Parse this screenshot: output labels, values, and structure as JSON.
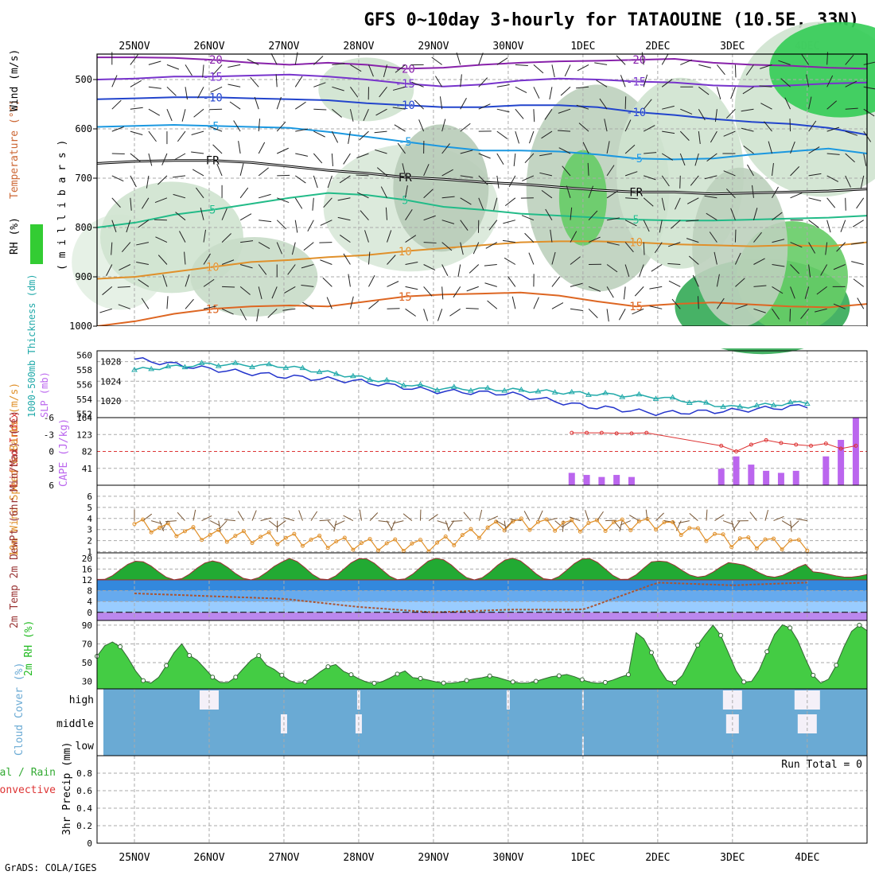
{
  "title": "GFS 0~10day 3-hourly for TATAOUINE (10.5E, 33N)",
  "footer": "GrADS: COLA/IGES",
  "dates": [
    "25NOV",
    "26NOV",
    "27NOV",
    "28NOV",
    "29NOV",
    "30NOV",
    "1DEC",
    "2DEC",
    "3DEC",
    "4DEC"
  ],
  "colors": {
    "frame": "#000000",
    "grid": "#aaaaaa",
    "rh_green": "#33cc33",
    "slp": "#2233cc",
    "thickness": "#22aaaa",
    "cape": "#bb66ee",
    "lifted": "#dd3333",
    "wind10": "#e0902a",
    "dew": "#aa5533",
    "cloud": "#6aaad4",
    "rh2m": "#22bb22"
  },
  "chart_data": [
    {
      "type": "contour",
      "panel": "upper-air",
      "ylabels": {
        "wind": "Wind (m/s)",
        "temperature": "Temperature (°C)",
        "rh": "RH (%)",
        "pressure": "( m i l l i b a r s )"
      },
      "yticks": [
        500,
        600,
        700,
        800,
        900,
        1000
      ],
      "temperature_isotherms": [
        {
          "label": "-20",
          "level_mb": [
            455,
            455,
            456,
            460,
            466,
            470,
            466,
            470,
            478,
            476,
            470,
            466,
            463,
            462,
            460,
            458,
            466,
            470,
            472,
            476,
            478
          ],
          "color": "#8822aa"
        },
        {
          "label": "-15",
          "level_mb": [
            500,
            498,
            494,
            494,
            492,
            490,
            494,
            500,
            508,
            514,
            510,
            502,
            498,
            500,
            504,
            506,
            512,
            514,
            512,
            508,
            506
          ],
          "color": "#7733cc"
        },
        {
          "label": "-10",
          "level_mb": [
            540,
            538,
            536,
            536,
            538,
            540,
            542,
            548,
            552,
            556,
            556,
            552,
            552,
            556,
            566,
            572,
            580,
            586,
            590,
            598,
            612
          ],
          "color": "#2244cc"
        },
        {
          "label": "-5",
          "level_mb": [
            596,
            594,
            592,
            594,
            596,
            598,
            606,
            616,
            626,
            636,
            644,
            644,
            646,
            652,
            660,
            662,
            660,
            652,
            646,
            640,
            650
          ],
          "color": "#1b98e0"
        },
        {
          "label": "FR",
          "level_mb": [
            670,
            666,
            664,
            664,
            668,
            676,
            684,
            690,
            698,
            702,
            708,
            712,
            718,
            724,
            728,
            728,
            732,
            730,
            728,
            726,
            722
          ],
          "color": "#000000"
        },
        {
          "label": "5",
          "level_mb": [
            800,
            790,
            774,
            764,
            752,
            740,
            730,
            734,
            744,
            758,
            764,
            772,
            776,
            780,
            784,
            786,
            786,
            784,
            782,
            780,
            776
          ],
          "color": "#22bb88"
        },
        {
          "label": "10",
          "level_mb": [
            904,
            900,
            890,
            880,
            870,
            866,
            860,
            856,
            848,
            842,
            836,
            830,
            828,
            828,
            830,
            834,
            836,
            838,
            836,
            838,
            830
          ],
          "color": "#e0902a"
        },
        {
          "label": "15",
          "level_mb": [
            1010,
            990,
            975,
            965,
            960,
            958,
            960,
            950,
            940,
            936,
            934,
            932,
            938,
            950,
            960,
            955,
            952,
            956,
            960,
            962,
            955
          ],
          "color": "#dd6622"
        }
      ]
    },
    {
      "type": "line",
      "panel": "slp-thickness",
      "ylabel_left": "1000-500mb Thickness (dm)",
      "ylabel_right": "SLP (mb)",
      "yticks_left": [
        552,
        554,
        556,
        558,
        560
      ],
      "yticks_right": [
        1020,
        1024,
        1028
      ],
      "ylim_left": [
        551.5,
        560.6
      ],
      "ylim_right": [
        1016.6,
        1030.2
      ],
      "x": [
        "25NOV",
        "26NOV",
        "27NOV",
        "28NOV",
        "29NOV",
        "30NOV",
        "1DEC",
        "2DEC",
        "3DEC",
        "4DEC"
      ],
      "series": [
        {
          "name": "SLP (mb)",
          "axis": "right",
          "values": [
            1028.5,
            1026.5,
            1025.0,
            1024.0,
            1022.0,
            1021.5,
            1019.0,
            1017.5,
            1018.0,
            1019.0
          ]
        },
        {
          "name": "1000-500mb Thickness (dm)",
          "axis": "left",
          "values": [
            558.0,
            558.8,
            558.5,
            557.0,
            555.5,
            555.3,
            554.8,
            554.3,
            552.9,
            553.6
          ]
        }
      ]
    },
    {
      "type": "bar",
      "panel": "cape-li",
      "ylabel_left": "Lifted Index",
      "ylabel_right": "CAPE (J/kg)",
      "yticks_left": [
        -6,
        -3,
        0,
        3,
        6
      ],
      "yticks_right": [
        41,
        82,
        123,
        164
      ],
      "x_days": [
        6.35,
        6.55,
        6.75,
        6.95,
        7.15,
        7.35,
        8.35,
        8.55,
        8.75,
        8.95,
        9.15,
        9.35,
        9.55,
        9.75,
        9.95,
        10.15
      ],
      "cape": [
        30,
        25,
        20,
        25,
        20,
        0,
        40,
        70,
        50,
        35,
        30,
        35,
        0,
        70,
        110,
        164
      ],
      "lifted": [
        3.3,
        3.3,
        3.3,
        3.2,
        3.2,
        3.3,
        1.0,
        0.0,
        1.2,
        2.0,
        1.5,
        1.2,
        1.0,
        1.4,
        0.5,
        1.0
      ]
    },
    {
      "type": "line",
      "panel": "wind10m",
      "ylabel": "10m Wind Speed & Barbs (m/s)",
      "yticks": [
        1,
        2,
        3,
        4,
        5,
        6
      ],
      "x": [
        "25NOV",
        "26NOV",
        "27NOV",
        "28NOV",
        "29NOV",
        "30NOV",
        "1DEC",
        "2DEC",
        "3DEC",
        "4DEC"
      ],
      "values": [
        3.5,
        2.5,
        2.2,
        1.7,
        1.6,
        3.6,
        3.4,
        3.6,
        2.0,
        1.7
      ]
    },
    {
      "type": "area",
      "panel": "temp2m",
      "ylabel": "2m Temp 2m DewPt (6hr Min/Max) (°C)",
      "yticks": [
        0,
        4,
        8,
        12,
        16,
        20
      ],
      "x": [
        "25NOV",
        "26NOV",
        "27NOV",
        "28NOV",
        "29NOV",
        "30NOV",
        "1DEC",
        "2DEC",
        "3DEC",
        "4DEC"
      ],
      "temp_max": [
        19,
        19,
        20,
        20,
        20,
        20,
        20,
        19,
        18,
        15
      ],
      "temp_min": [
        12,
        12,
        12,
        12,
        12,
        12,
        12,
        13,
        13,
        13
      ],
      "dewpoint": [
        7,
        6,
        5,
        2,
        0,
        1,
        1,
        11,
        10,
        11
      ]
    },
    {
      "type": "area",
      "panel": "rh2m",
      "ylabel": "2m RH (%)",
      "yticks": [
        30,
        50,
        70,
        90
      ],
      "x": [
        "25NOV",
        "26NOV",
        "27NOV",
        "28NOV",
        "29NOV",
        "30NOV",
        "1DEC",
        "2DEC",
        "3DEC",
        "4DEC"
      ],
      "values": [
        72,
        58,
        48,
        42,
        34,
        36,
        38,
        82,
        91,
        90
      ]
    },
    {
      "type": "heatmap",
      "panel": "cloud",
      "ylabel": "Cloud Cover (%)",
      "rows": [
        "high",
        "middle",
        "low"
      ],
      "high": [
        0,
        60,
        0,
        10,
        0,
        10,
        5,
        0,
        60,
        80
      ],
      "middle": [
        0,
        0,
        20,
        20,
        0,
        0,
        0,
        0,
        40,
        60
      ],
      "low": [
        0,
        0,
        0,
        0,
        0,
        0,
        5,
        0,
        0,
        0
      ]
    },
    {
      "type": "bar",
      "panel": "precip",
      "ylabel": "3hr Precip (mm)",
      "legend": "Total / Rain Convective",
      "yticks": [
        0,
        0.2,
        0.4,
        0.6,
        0.8
      ],
      "annotation": "Run Total = 0",
      "values": []
    }
  ]
}
